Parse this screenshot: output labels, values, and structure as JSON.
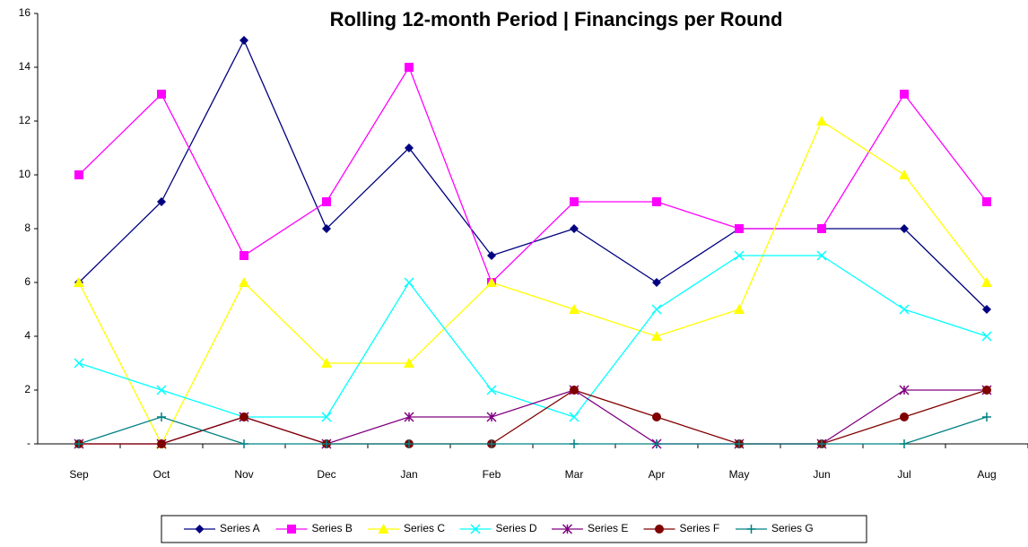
{
  "chart_data": {
    "type": "line",
    "title": "Rolling 12-month Period | Financings per Round",
    "categories": [
      "Sep",
      "Oct",
      "Nov",
      "Dec",
      "Jan",
      "Feb",
      "Mar",
      "Apr",
      "May",
      "Jun",
      "Jul",
      "Aug"
    ],
    "series": [
      {
        "name": "Series A",
        "color": "#000080",
        "marker": "diamond",
        "values": [
          6,
          9,
          15,
          8,
          11,
          7,
          8,
          6,
          8,
          8,
          8,
          5
        ]
      },
      {
        "name": "Series B",
        "color": "#ff00ff",
        "marker": "square",
        "values": [
          10,
          13,
          7,
          9,
          14,
          6,
          9,
          9,
          8,
          8,
          13,
          9
        ]
      },
      {
        "name": "Series C",
        "color": "#ffff00",
        "marker": "triangle",
        "values": [
          6,
          0,
          6,
          3,
          3,
          6,
          5,
          4,
          5,
          12,
          10,
          6
        ]
      },
      {
        "name": "Series D",
        "color": "#00ffff",
        "marker": "x",
        "values": [
          3,
          2,
          1,
          1,
          6,
          2,
          1,
          5,
          7,
          7,
          5,
          4
        ]
      },
      {
        "name": "Series E",
        "color": "#800080",
        "marker": "star",
        "values": [
          0,
          0,
          1,
          0,
          1,
          1,
          2,
          0,
          0,
          0,
          2,
          2
        ]
      },
      {
        "name": "Series F",
        "color": "#800000",
        "marker": "circle",
        "values": [
          0,
          0,
          1,
          0,
          0,
          0,
          2,
          1,
          0,
          0,
          1,
          2
        ]
      },
      {
        "name": "Series G",
        "color": "#008080",
        "marker": "plus",
        "values": [
          0,
          1,
          0,
          0,
          0,
          0,
          0,
          0,
          0,
          0,
          0,
          1
        ]
      }
    ],
    "ylim": [
      0,
      16
    ],
    "yticks": [
      {
        "value": 0,
        "label": "-"
      },
      2,
      4,
      6,
      8,
      10,
      12,
      14,
      16
    ],
    "grid": false,
    "legend": "bottom"
  }
}
